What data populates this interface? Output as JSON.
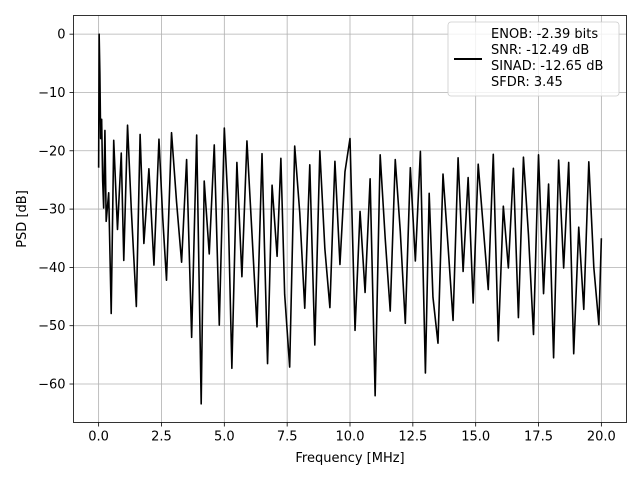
{
  "chart_data": {
    "type": "line",
    "title": "",
    "xlabel": "Frequency [MHz]",
    "ylabel": "PSD [dB]",
    "xlim": [
      -1.0,
      21.0
    ],
    "ylim": [
      -66.6,
      3.2
    ],
    "grid": true,
    "legend_position": "top-right",
    "line_color": "#000000",
    "xticks": [
      0.0,
      2.5,
      5.0,
      7.5,
      10.0,
      12.5,
      15.0,
      17.5,
      20.0
    ],
    "xtick_labels": [
      "0.0",
      "2.5",
      "5.0",
      "7.5",
      "10.0",
      "12.5",
      "15.0",
      "17.5",
      "20.0"
    ],
    "yticks": [
      0,
      -10,
      -20,
      -30,
      -40,
      -50,
      -60
    ],
    "ytick_labels": [
      "0",
      "−10",
      "−20",
      "−30",
      "−40",
      "−50",
      "−60"
    ],
    "legend_lines": [
      "ENOB: -2.39 bits",
      "SNR: -12.49 dB",
      "SINAD: -12.65 dB",
      "SFDR: 3.45"
    ],
    "series": [
      {
        "x": [
          0.0,
          0.02,
          0.05,
          0.08,
          0.12,
          0.16,
          0.2,
          0.25,
          0.3,
          0.4,
          0.5,
          0.6,
          0.75,
          0.9,
          1.0,
          1.15,
          1.3,
          1.5,
          1.65,
          1.8,
          2.0,
          2.2,
          2.4,
          2.55,
          2.7,
          2.9,
          3.1,
          3.3,
          3.5,
          3.7,
          3.9,
          4.08,
          4.2,
          4.4,
          4.6,
          4.8,
          5.0,
          5.15,
          5.3,
          5.5,
          5.7,
          5.9,
          6.1,
          6.3,
          6.5,
          6.72,
          6.9,
          7.1,
          7.25,
          7.4,
          7.6,
          7.8,
          8.0,
          8.2,
          8.4,
          8.6,
          8.8,
          9.0,
          9.2,
          9.4,
          9.6,
          9.8,
          10.0,
          10.2,
          10.4,
          10.6,
          10.8,
          11.0,
          11.2,
          11.4,
          11.6,
          11.8,
          12.0,
          12.2,
          12.4,
          12.6,
          12.8,
          13.0,
          13.15,
          13.3,
          13.5,
          13.7,
          13.9,
          14.1,
          14.3,
          14.5,
          14.7,
          14.9,
          15.1,
          15.3,
          15.5,
          15.7,
          15.9,
          16.1,
          16.3,
          16.5,
          16.7,
          16.9,
          17.1,
          17.3,
          17.5,
          17.7,
          17.9,
          18.1,
          18.3,
          18.5,
          18.7,
          18.9,
          19.1,
          19.3,
          19.5,
          19.7,
          19.9,
          20.0
        ],
        "y": [
          -22.9,
          0.0,
          -6.8,
          -17.9,
          -14.6,
          -25.1,
          -29.8,
          -16.5,
          -32.1,
          -27.2,
          -47.9,
          -18.2,
          -33.5,
          -20.4,
          -38.8,
          -15.6,
          -30.1,
          -46.7,
          -17.2,
          -35.9,
          -23.1,
          -39.6,
          -18.0,
          -31.5,
          -42.2,
          -16.9,
          -28.8,
          -39.1,
          -21.5,
          -52.0,
          -17.3,
          -63.4,
          -25.2,
          -37.7,
          -19.0,
          -49.9,
          -16.1,
          -29.4,
          -57.3,
          -22.0,
          -41.6,
          -18.3,
          -34.2,
          -50.2,
          -20.5,
          -56.5,
          -25.9,
          -38.1,
          -21.3,
          -44.6,
          -57.1,
          -19.2,
          -30.6,
          -47.0,
          -22.4,
          -53.3,
          -20.0,
          -36.8,
          -46.9,
          -21.8,
          -39.5,
          -23.6,
          -17.9,
          -50.8,
          -30.4,
          -44.3,
          -24.8,
          -62.0,
          -20.7,
          -35.0,
          -47.5,
          -21.5,
          -33.8,
          -49.6,
          -22.9,
          -38.9,
          -20.1,
          -58.1,
          -27.3,
          -45.1,
          -53.0,
          -24.0,
          -36.3,
          -49.1,
          -21.2,
          -40.7,
          -24.6,
          -46.1,
          -22.3,
          -33.0,
          -43.8,
          -20.6,
          -52.6,
          -29.5,
          -40.1,
          -23.0,
          -48.6,
          -21.1,
          -34.4,
          -51.5,
          -20.7,
          -44.5,
          -25.7,
          -55.5,
          -21.6,
          -40.1,
          -22.0,
          -54.8,
          -33.1,
          -47.2,
          -21.9,
          -40.0,
          -49.8,
          -35.0
        ]
      }
    ]
  }
}
